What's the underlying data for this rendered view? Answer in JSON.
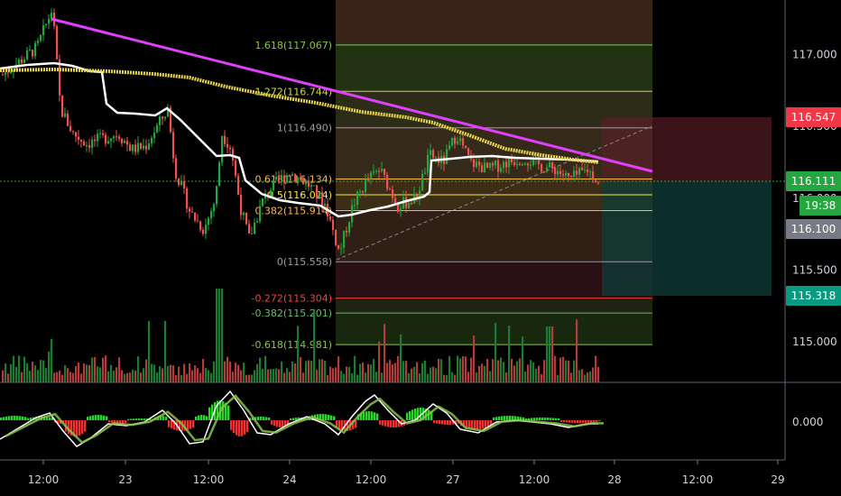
{
  "chart_data": {
    "type": "candlestick",
    "y_axis": {
      "ticks": [
        "117.000",
        "116.500",
        "116.000",
        "115.500",
        "115.000"
      ],
      "range": [
        114.7,
        117.35
      ]
    },
    "x_axis": {
      "ticks": [
        "12:00",
        "23",
        "12:00",
        "24",
        "12:00",
        "27",
        "12:00",
        "28",
        "12:00",
        "29"
      ]
    },
    "macd_axis": {
      "ticks": [
        "0.000"
      ]
    },
    "fibonacci": [
      {
        "label": "1.618(117.067)",
        "price": 117.067,
        "color": "#8bc34a"
      },
      {
        "label": "1.272(116.744)",
        "price": 116.744,
        "color": "#cddc39"
      },
      {
        "label": "1(116.490)",
        "price": 116.49,
        "color": "#9e9e9e"
      },
      {
        "label": "0.618(116.134)",
        "price": 116.134,
        "color": "#ffb74d"
      },
      {
        "label": "0.5(116.024)",
        "price": 116.024,
        "color": "#ffeb3b"
      },
      {
        "label": "0.382(115.914)",
        "price": 115.914,
        "color": "#ffb74d"
      },
      {
        "label": "0(115.558)",
        "price": 115.558,
        "color": "#9e9e9e"
      },
      {
        "label": "-0.272(115.304)",
        "price": 115.304,
        "color": "#f44336"
      },
      {
        "label": "-0.382(115.201)",
        "price": 115.201,
        "color": "#66bb6a"
      },
      {
        "label": "-0.618(114.981)",
        "price": 114.981,
        "color": "#8bc34a"
      }
    ],
    "price_tags": [
      {
        "label": "116.547",
        "price": 116.547,
        "color": "#f23645"
      },
      {
        "label": "116.111",
        "price": 116.111,
        "color": "#26a641"
      },
      {
        "label": "19:38",
        "price": 115.93,
        "color": "#26a641"
      },
      {
        "label": "116.100",
        "price": 116.1,
        "color": "#787b86"
      },
      {
        "label": "115.318",
        "price": 115.318,
        "color": "#089981"
      }
    ],
    "position": {
      "stop": 116.547,
      "entry": 116.111,
      "target": 115.318
    },
    "current_price": 116.111,
    "candle_up_color": "#26a641",
    "candle_down_color": "#ef5350",
    "ma_color": "#ffffff",
    "ema_color": "#e8d44d",
    "trendline_color": "#e040fb"
  }
}
